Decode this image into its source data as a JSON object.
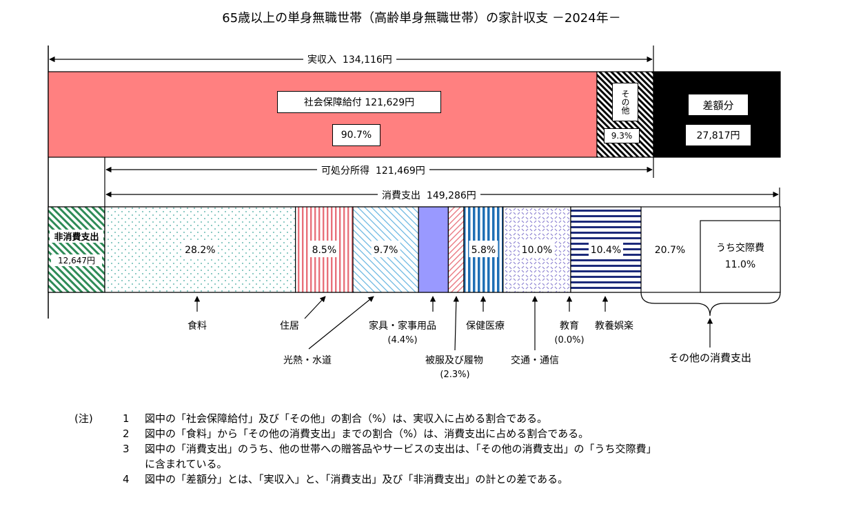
{
  "title": "65歳以上の単身無職世帯（高齢単身無職世帯）の家計収支 －2024年－",
  "chart_data": {
    "type": "bar",
    "title": "65歳以上の単身無職世帯（高齢単身無職世帯）の家計収支 －2024年－",
    "income": {
      "label": "実収入",
      "value_text": "134,116円",
      "value": 134116,
      "segments": [
        {
          "name": "社会保障給付",
          "value_text": "121,629円",
          "value": 121629,
          "pct_text": "90.7%",
          "pct": 90.7,
          "color": "#ff8080"
        },
        {
          "name": "その他",
          "pct_text": "9.3%",
          "pct": 9.3,
          "color": "#000000"
        }
      ],
      "deficit": {
        "name": "差額分",
        "value_text": "27,817円",
        "value": 27817,
        "color": "#000000"
      }
    },
    "disposable": {
      "label": "可処分所得",
      "value_text": "121,469円",
      "value": 121469
    },
    "consumption": {
      "label": "消費支出",
      "value_text": "149,286円",
      "value": 149286,
      "segments": [
        {
          "name": "食料",
          "pct": 28.2,
          "pct_text": "28.2%",
          "color": "#3aa59a"
        },
        {
          "name": "住居",
          "pct": 8.5,
          "pct_text": "8.5%",
          "color": "#e8707a"
        },
        {
          "name": "光熱・水道",
          "pct": 9.7,
          "pct_text": "9.7%",
          "color": "#64b4e0"
        },
        {
          "name": "家具・家事用品",
          "pct": 4.4,
          "pct_text": "(4.4%)",
          "color": "#9999ff"
        },
        {
          "name": "被服及び履物",
          "pct": 2.3,
          "pct_text": "(2.3%)",
          "color": "#e8707a"
        },
        {
          "name": "保健医療",
          "pct": 5.8,
          "pct_text": "5.8%",
          "color": "#1f6fb5"
        },
        {
          "name": "交通・通信",
          "pct": 10.0,
          "pct_text": "10.0%",
          "color": "#8a7fd0"
        },
        {
          "name": "教育",
          "pct": 0.0,
          "pct_text": "(0.0%)",
          "color": "#000000"
        },
        {
          "name": "教養娯楽",
          "pct": 10.4,
          "pct_text": "10.4%",
          "color": "#1c2a7a"
        },
        {
          "name": "その他の消費支出",
          "pct": 20.7,
          "pct_text": "20.7%",
          "color": "#ffffff",
          "sub": {
            "name": "うち交際費",
            "pct": 11.0,
            "pct_text": "11.0%"
          }
        }
      ]
    },
    "non_consumption": {
      "name": "非消費支出",
      "value_text": "12,647円",
      "value": 12647,
      "color": "#2e8b57"
    }
  },
  "notes": {
    "heading": "(注)",
    "items": [
      {
        "num": "1",
        "text": "図中の「社会保障給付」及び「その他」の割合（%）は、実収入に占める割合である。"
      },
      {
        "num": "2",
        "text": "図中の「食料」から「その他の消費支出」までの割合（%）は、消費支出に占める割合である。"
      },
      {
        "num": "3",
        "text": "図中の「消費支出」のうち、他の世帯への贈答品やサービスの支出は、「その他の消費支出」の「うち交際費」"
      },
      {
        "num": "",
        "text": "に含まれている。"
      },
      {
        "num": "4",
        "text": "図中の「差額分」とは、「実収入」と、「消費支出」及び「非消費支出」の計との差である。"
      }
    ]
  }
}
